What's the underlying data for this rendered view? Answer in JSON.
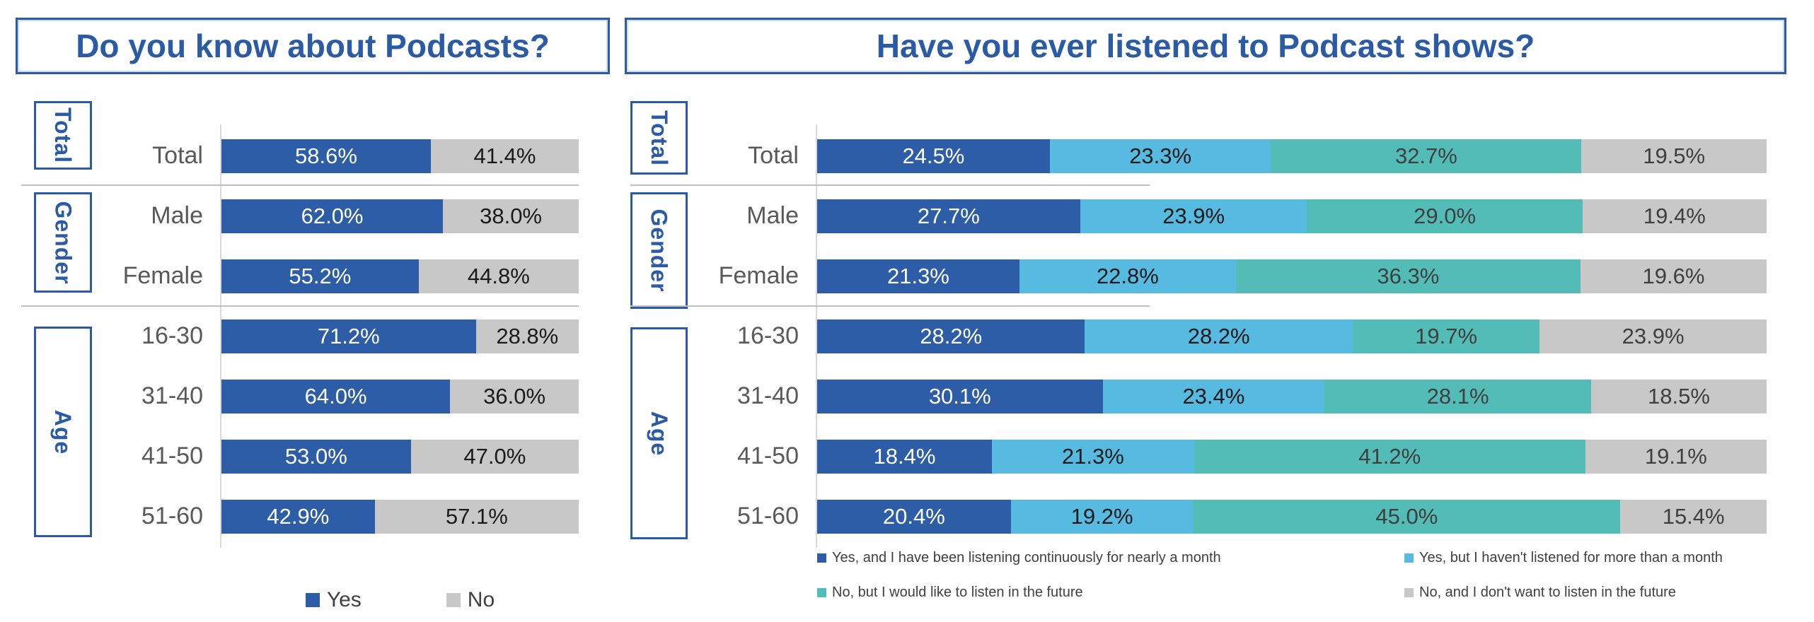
{
  "colors": {
    "accent_blue": "#2B5BA5",
    "series_dark_blue": "#2C5DA6",
    "series_light_blue": "#57BAE0",
    "series_teal": "#53BCB6",
    "series_gray": "#C8C8C8",
    "category_label_gray": "#595959",
    "separator_gray": "#BFBFBF",
    "axis_gray": "#D9D9D9"
  },
  "chart_data": [
    {
      "type": "bar",
      "orientation": "horizontal",
      "stacked": true,
      "title": "Do you know about Podcasts?",
      "xlim": [
        0,
        100
      ],
      "value_format": "percent_1dp",
      "legend_position": "bottom",
      "categories": [
        "Total",
        "Male",
        "Female",
        "16-30",
        "31-40",
        "41-50",
        "51-60"
      ],
      "category_groups": [
        {
          "label": "Total",
          "categories": [
            "Total"
          ]
        },
        {
          "label": "Gender",
          "categories": [
            "Male",
            "Female"
          ]
        },
        {
          "label": "Age",
          "categories": [
            "16-30",
            "31-40",
            "41-50",
            "51-60"
          ]
        }
      ],
      "series": [
        {
          "name": "Yes",
          "color": "#2C5DA6",
          "label_color": "#FFFFFF",
          "values": [
            58.6,
            62.0,
            55.2,
            71.2,
            64.0,
            53.0,
            42.9
          ]
        },
        {
          "name": "No",
          "color": "#C8C8C8",
          "label_color": "#1A1A1A",
          "values": [
            41.4,
            38.0,
            44.8,
            28.8,
            36.0,
            47.0,
            57.1
          ]
        }
      ]
    },
    {
      "type": "bar",
      "orientation": "horizontal",
      "stacked": true,
      "title": "Have you ever listened to Podcast shows?",
      "xlim": [
        0,
        100
      ],
      "value_format": "percent_1dp",
      "legend_position": "bottom",
      "categories": [
        "Total",
        "Male",
        "Female",
        "16-30",
        "31-40",
        "41-50",
        "51-60"
      ],
      "category_groups": [
        {
          "label": "Total",
          "categories": [
            "Total"
          ]
        },
        {
          "label": "Gender",
          "categories": [
            "Male",
            "Female"
          ]
        },
        {
          "label": "Age",
          "categories": [
            "16-30",
            "31-40",
            "41-50",
            "51-60"
          ]
        }
      ],
      "series": [
        {
          "name": "Yes, and I have been listening continuously for nearly a month",
          "color": "#2C5DA6",
          "label_color": "#FFFFFF",
          "values": [
            24.5,
            27.7,
            21.3,
            28.2,
            30.1,
            18.4,
            20.4
          ]
        },
        {
          "name": "Yes, but I haven't listened for more than a month",
          "color": "#57BAE0",
          "label_color": "#1A1A1A",
          "values": [
            23.3,
            23.9,
            22.8,
            28.2,
            23.4,
            21.3,
            19.2
          ]
        },
        {
          "name": "No, but I would like to listen in the future",
          "color": "#53BCB6",
          "label_color": "#3F3F3F",
          "values": [
            32.7,
            29.0,
            36.3,
            19.7,
            28.1,
            41.2,
            45.0
          ]
        },
        {
          "name": "No, and I don't want to listen in the future",
          "color": "#C8C8C8",
          "label_color": "#3F3F3F",
          "values": [
            19.5,
            19.4,
            19.6,
            23.9,
            18.5,
            19.1,
            15.4
          ]
        }
      ]
    }
  ]
}
